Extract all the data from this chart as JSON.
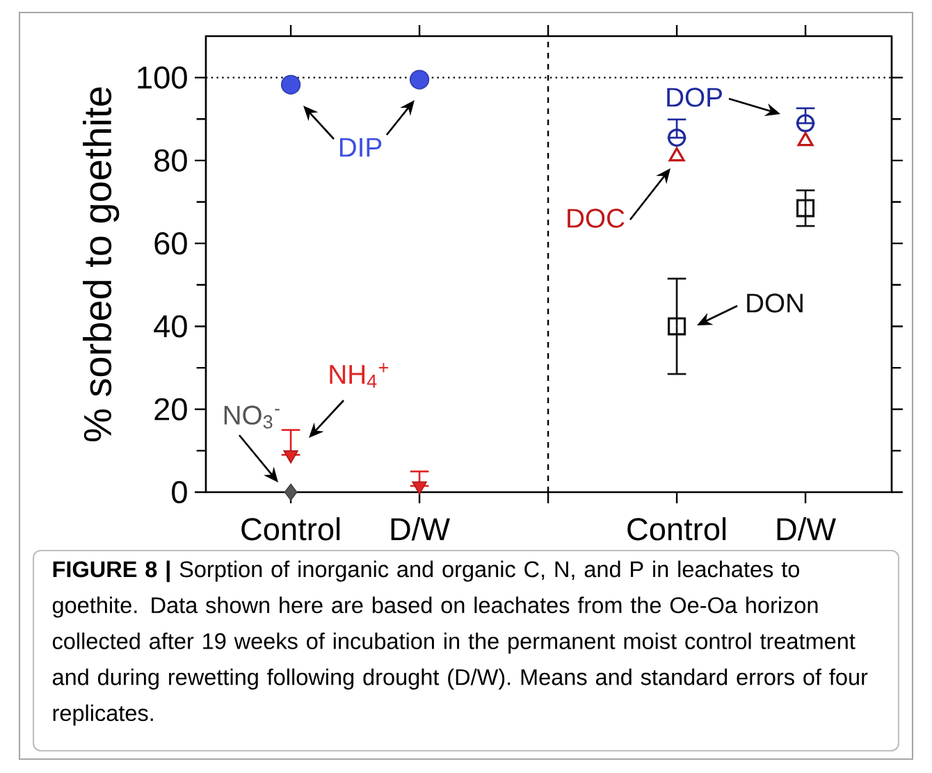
{
  "chart_data": {
    "type": "scatter",
    "ylabel": "% sorbed to goethite",
    "categories": [
      "Control",
      "D/W",
      null,
      "Control",
      "D/W"
    ],
    "ylim": [
      0,
      110
    ],
    "yticks": [
      0,
      20,
      40,
      60,
      80,
      100
    ],
    "series": [
      {
        "name": "DIP",
        "color": "#3f4fe0",
        "marker": "circle",
        "values": [
          98.3,
          99.5,
          null,
          null,
          null
        ]
      },
      {
        "name": "NH$_{4}$$^{+}$",
        "color": "#e02424",
        "marker": "triangle",
        "values": [
          9,
          1.5,
          null,
          null,
          null
        ],
        "errors": [
          [
            9,
            15
          ],
          [
            1.5,
            5
          ],
          null,
          null,
          null
        ]
      },
      {
        "name": "NO$_{3}$$^{-}$",
        "color": "#555555",
        "marker": "diamond",
        "values": [
          0,
          null,
          null,
          null,
          null
        ]
      },
      {
        "name": "DOP",
        "color": "#1e2a9c",
        "marker": "circle",
        "values": [
          null,
          null,
          null,
          85.5,
          89
        ],
        "errors": [
          null,
          null,
          null,
          [
            85.5,
            89.9
          ],
          [
            89,
            92.6
          ]
        ]
      },
      {
        "name": "DOC",
        "color": "#c01818",
        "marker": "triangle",
        "values": [
          null,
          null,
          null,
          81,
          84.7
        ]
      },
      {
        "name": "DON",
        "color": "#111111",
        "marker": "square",
        "values": [
          null,
          null,
          null,
          40,
          68.5
        ],
        "errors": [
          null,
          null,
          null,
          11.5,
          4.3
        ]
      }
    ],
    "ref_lines": [
      {
        "axis": "y",
        "value": 100,
        "line_style": "dotted"
      }
    ],
    "annotations": [
      "**FIGURE 8 |** Sorption of inorganic and organic C, N, and P in leachates to goethite. Data shown here are based on leachates from the Oe-Oa horizon collected after 19 weeks of incubation in the permanent moist control treatment and during rewetting following drought (D/W). Means and standard errors of four replicates."
    ]
  }
}
